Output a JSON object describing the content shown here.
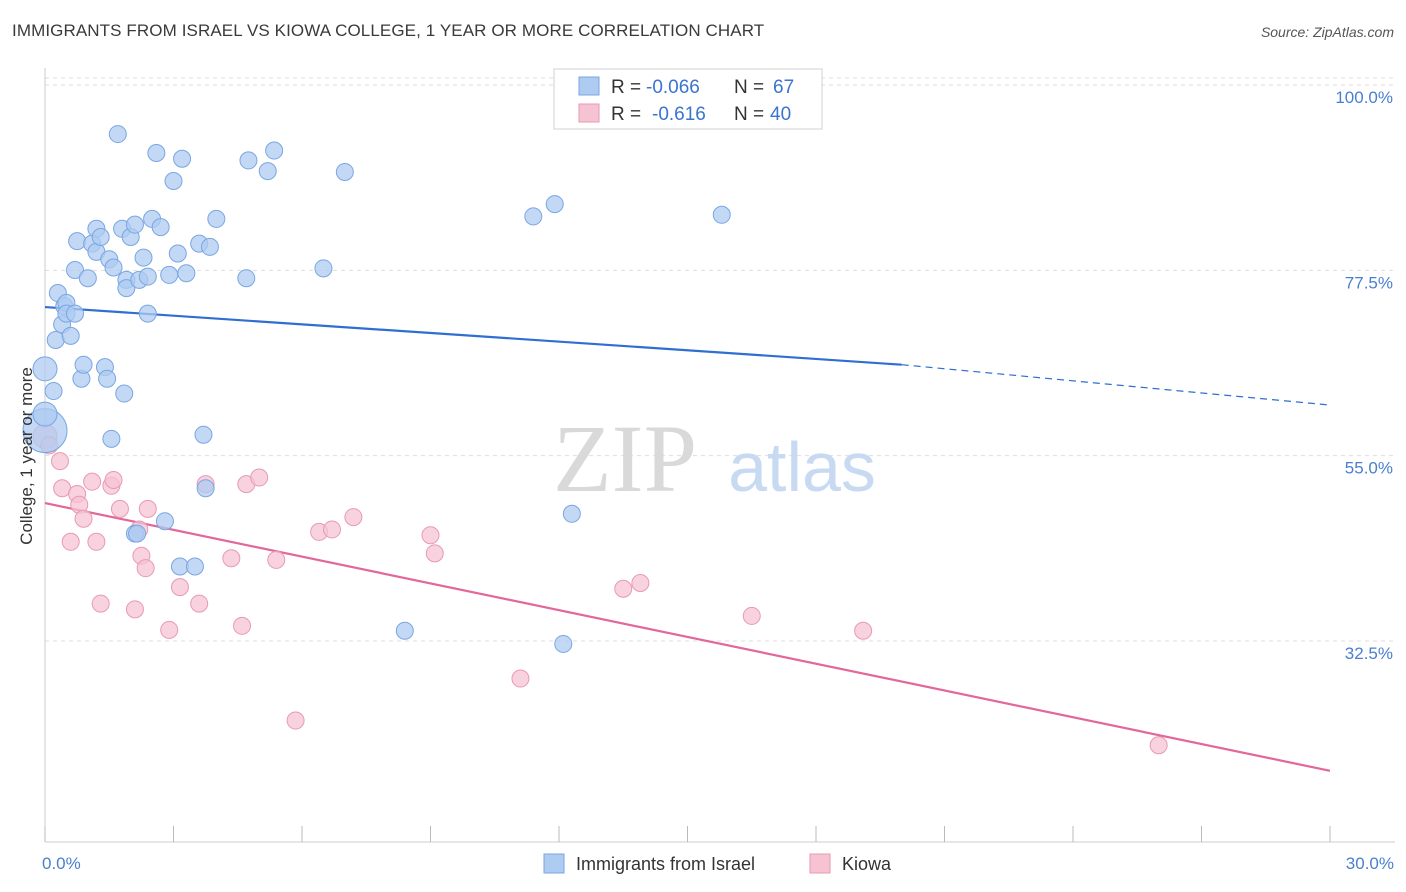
{
  "header": {
    "title": "IMMIGRANTS FROM ISRAEL VS KIOWA COLLEGE, 1 YEAR OR MORE CORRELATION CHART",
    "source": "Source: ZipAtlas.com"
  },
  "watermark": {
    "zip": "ZIP",
    "atlas": "atlas"
  },
  "colors": {
    "blue_fill": "#aecbf1",
    "blue_stroke": "#7aa6e2",
    "blue_line": "#2f6fd1",
    "pink_fill": "#f6c3d3",
    "pink_stroke": "#e89ab3",
    "pink_line": "#e2679a",
    "tick_label": "#4a7fd0",
    "grid": "#dddddd"
  },
  "legend": {
    "rows": [
      {
        "r_label": "R =",
        "r_value": "-0.066",
        "n_label": "N =",
        "n_value": "67"
      },
      {
        "r_label": "R =",
        "r_value": "-0.616",
        "n_label": "N =",
        "n_value": "40"
      }
    ]
  },
  "chart_data": {
    "type": "scatter",
    "title": "IMMIGRANTS FROM ISRAEL VS KIOWA COLLEGE, 1 YEAR OR MORE CORRELATION CHART",
    "xlabel": "",
    "ylabel": "College, 1 year or more",
    "xlim": [
      0,
      30
    ],
    "ylim": [
      10,
      105
    ],
    "x_tick_labels": [
      "0.0%",
      "30.0%"
    ],
    "x_tick_values": [
      0,
      30
    ],
    "y_tick_labels": [
      "100.0%",
      "77.5%",
      "55.0%",
      "32.5%"
    ],
    "y_tick_values": [
      100,
      77.5,
      55,
      32.5
    ],
    "grid": true,
    "legend_position": "top-center",
    "series": [
      {
        "name": "Immigrants from Israel",
        "R": -0.066,
        "N": 67,
        "trend": {
          "x": [
            0,
            20
          ],
          "y": [
            74.5,
            67.5
          ],
          "dashed_to": [
            30,
            62.6
          ]
        },
        "points": [
          [
            0.0,
            59.5
          ],
          [
            0.0,
            67.0
          ],
          [
            0.2,
            64.3
          ],
          [
            0.25,
            70.5
          ],
          [
            0.3,
            76.2
          ],
          [
            0.4,
            72.4
          ],
          [
            0.45,
            74.6
          ],
          [
            0.5,
            75.0
          ],
          [
            0.5,
            73.7
          ],
          [
            0.6,
            71.0
          ],
          [
            0.7,
            73.7
          ],
          [
            0.7,
            79.0
          ],
          [
            0.75,
            82.5
          ],
          [
            0.85,
            65.8
          ],
          [
            0.9,
            67.5
          ],
          [
            1.0,
            78.0
          ],
          [
            1.1,
            82.2
          ],
          [
            1.2,
            81.2
          ],
          [
            1.2,
            84.0
          ],
          [
            1.3,
            83.0
          ],
          [
            1.4,
            67.2
          ],
          [
            1.45,
            65.8
          ],
          [
            1.5,
            80.3
          ],
          [
            1.55,
            58.5
          ],
          [
            1.6,
            79.3
          ],
          [
            1.7,
            95.5
          ],
          [
            1.8,
            84.0
          ],
          [
            1.85,
            64.0
          ],
          [
            1.9,
            77.8
          ],
          [
            1.9,
            76.8
          ],
          [
            2.0,
            83.0
          ],
          [
            2.1,
            84.5
          ],
          [
            2.1,
            47.0
          ],
          [
            2.15,
            47.0
          ],
          [
            2.2,
            77.8
          ],
          [
            2.3,
            80.5
          ],
          [
            2.4,
            73.7
          ],
          [
            2.4,
            78.2
          ],
          [
            2.5,
            85.2
          ],
          [
            2.6,
            93.2
          ],
          [
            2.7,
            84.2
          ],
          [
            2.8,
            48.5
          ],
          [
            2.9,
            78.4
          ],
          [
            3.0,
            89.8
          ],
          [
            3.1,
            81.0
          ],
          [
            3.15,
            43.0
          ],
          [
            3.2,
            92.5
          ],
          [
            3.3,
            78.6
          ],
          [
            3.5,
            43.0
          ],
          [
            3.6,
            82.2
          ],
          [
            3.7,
            59.0
          ],
          [
            3.75,
            52.5
          ],
          [
            3.85,
            81.8
          ],
          [
            4.0,
            85.2
          ],
          [
            4.7,
            78.0
          ],
          [
            4.75,
            92.3
          ],
          [
            5.2,
            91.0
          ],
          [
            5.35,
            93.5
          ],
          [
            6.5,
            79.2
          ],
          [
            7.0,
            90.9
          ],
          [
            8.4,
            35.2
          ],
          [
            11.4,
            85.5
          ],
          [
            11.9,
            87.0
          ],
          [
            12.1,
            33.6
          ],
          [
            12.3,
            49.4
          ],
          [
            15.8,
            85.7
          ],
          [
            0.0,
            61.5
          ]
        ]
      },
      {
        "name": "Kiowa",
        "R": -0.616,
        "N": 40,
        "trend": {
          "x": [
            0,
            30
          ],
          "y": [
            50.7,
            18.2
          ]
        },
        "points": [
          [
            0.0,
            58.8
          ],
          [
            0.1,
            57.7
          ],
          [
            0.35,
            55.8
          ],
          [
            0.4,
            52.5
          ],
          [
            0.6,
            46.0
          ],
          [
            0.75,
            51.8
          ],
          [
            0.8,
            50.5
          ],
          [
            0.9,
            48.8
          ],
          [
            1.1,
            53.3
          ],
          [
            1.2,
            46.0
          ],
          [
            1.3,
            38.5
          ],
          [
            1.55,
            52.8
          ],
          [
            1.6,
            53.5
          ],
          [
            1.75,
            50.0
          ],
          [
            2.1,
            37.8
          ],
          [
            2.2,
            47.5
          ],
          [
            2.25,
            44.3
          ],
          [
            2.35,
            42.8
          ],
          [
            2.4,
            50.0
          ],
          [
            2.9,
            35.3
          ],
          [
            3.15,
            40.5
          ],
          [
            3.6,
            38.5
          ],
          [
            3.75,
            53.0
          ],
          [
            4.35,
            44.0
          ],
          [
            4.6,
            35.8
          ],
          [
            4.7,
            53.0
          ],
          [
            5.0,
            53.8
          ],
          [
            5.4,
            43.8
          ],
          [
            5.85,
            24.3
          ],
          [
            6.4,
            47.2
          ],
          [
            6.7,
            47.5
          ],
          [
            7.2,
            49.0
          ],
          [
            9.0,
            46.8
          ],
          [
            9.1,
            44.6
          ],
          [
            11.1,
            29.4
          ],
          [
            13.5,
            40.3
          ],
          [
            13.9,
            41.0
          ],
          [
            16.5,
            37.0
          ],
          [
            19.1,
            35.2
          ],
          [
            26.0,
            21.3
          ]
        ]
      }
    ]
  },
  "bottom_legend": [
    {
      "label": "Immigrants from Israel"
    },
    {
      "label": "Kiowa"
    }
  ]
}
